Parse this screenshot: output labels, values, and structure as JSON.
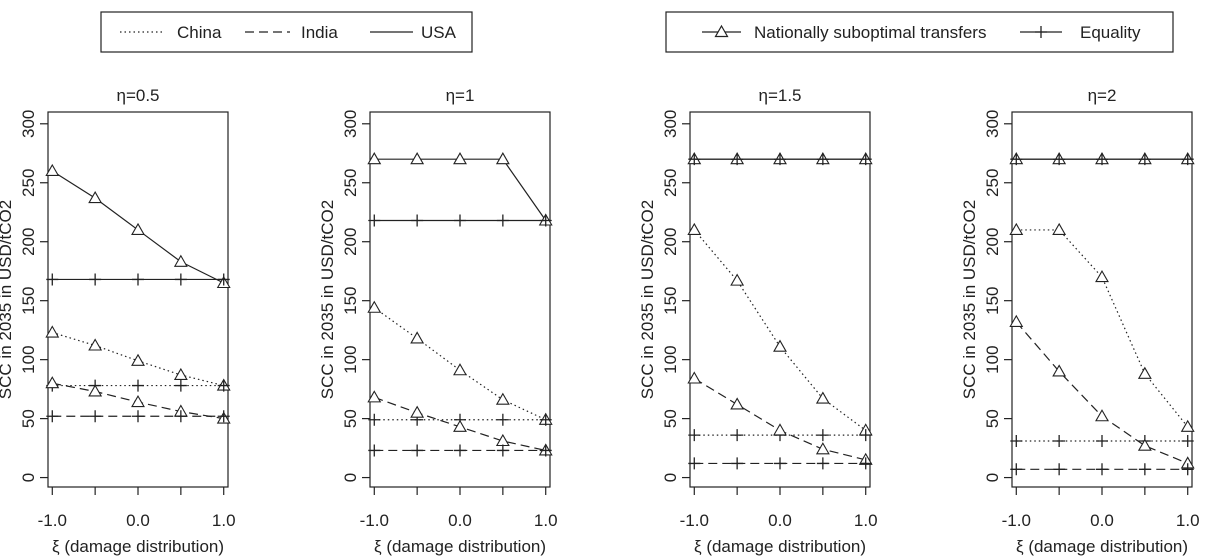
{
  "legends": [
    {
      "entries": [
        {
          "label": "China",
          "style": "dotted"
        },
        {
          "label": "India",
          "style": "dashed"
        },
        {
          "label": "USA",
          "style": "solid"
        }
      ]
    },
    {
      "entries": [
        {
          "label": "Nationally suboptimal transfers",
          "marker": "triangle"
        },
        {
          "label": "Equality",
          "marker": "plus"
        }
      ]
    }
  ],
  "chart_data": [
    {
      "type": "line",
      "title": "η=0.5",
      "xlabel": "ξ (damage distribution)",
      "ylabel": "SCC in 2035 in USD/tCO2",
      "x": [
        -1.0,
        -0.5,
        0.0,
        0.5,
        1.0
      ],
      "xticks": [
        "-1.0",
        "0.0",
        "1.0"
      ],
      "yticks": [
        "0",
        "50",
        "100",
        "150",
        "200",
        "250",
        "300"
      ],
      "xlim": [
        -1.05,
        1.05
      ],
      "ylim": [
        -8,
        310
      ],
      "grid": false,
      "series": [
        {
          "name": "USA",
          "marker": "triangle",
          "values": [
            260,
            237,
            210,
            183,
            165
          ]
        },
        {
          "name": "USA",
          "marker": "plus",
          "values": [
            168,
            168,
            168,
            168,
            168
          ]
        },
        {
          "name": "China",
          "marker": "triangle",
          "values": [
            123,
            112,
            99,
            87,
            78
          ]
        },
        {
          "name": "China",
          "marker": "plus",
          "values": [
            78,
            78,
            78,
            78,
            78
          ]
        },
        {
          "name": "India",
          "marker": "triangle",
          "values": [
            80,
            73,
            64,
            56,
            50
          ]
        },
        {
          "name": "India",
          "marker": "plus",
          "values": [
            52,
            52,
            52,
            52,
            52
          ]
        }
      ]
    },
    {
      "type": "line",
      "title": "η=1",
      "xlabel": "ξ (damage distribution)",
      "ylabel": "SCC in 2035 in USD/tCO2",
      "x": [
        -1.0,
        -0.5,
        0.0,
        0.5,
        1.0
      ],
      "xticks": [
        "-1.0",
        "0.0",
        "1.0"
      ],
      "yticks": [
        "0",
        "50",
        "100",
        "150",
        "200",
        "250",
        "300"
      ],
      "xlim": [
        -1.05,
        1.05
      ],
      "ylim": [
        -8,
        310
      ],
      "grid": false,
      "series": [
        {
          "name": "USA",
          "marker": "triangle",
          "values": [
            270,
            270,
            270,
            270,
            218
          ]
        },
        {
          "name": "USA",
          "marker": "plus",
          "values": [
            218,
            218,
            218,
            218,
            218
          ]
        },
        {
          "name": "China",
          "marker": "triangle",
          "values": [
            144,
            118,
            91,
            66,
            49
          ]
        },
        {
          "name": "China",
          "marker": "plus",
          "values": [
            49,
            49,
            49,
            49,
            49
          ]
        },
        {
          "name": "India",
          "marker": "triangle",
          "values": [
            68,
            55,
            43,
            31,
            23
          ]
        },
        {
          "name": "India",
          "marker": "plus",
          "values": [
            23,
            23,
            23,
            23,
            23
          ]
        }
      ]
    },
    {
      "type": "line",
      "title": "η=1.5",
      "xlabel": "ξ (damage distribution)",
      "ylabel": "SCC in 2035 in USD/tCO2",
      "x": [
        -1.0,
        -0.5,
        0.0,
        0.5,
        1.0
      ],
      "xticks": [
        "-1.0",
        "0.0",
        "1.0"
      ],
      "yticks": [
        "0",
        "50",
        "100",
        "150",
        "200",
        "250",
        "300"
      ],
      "xlim": [
        -1.05,
        1.05
      ],
      "ylim": [
        -8,
        310
      ],
      "grid": false,
      "series": [
        {
          "name": "USA",
          "marker": "triangle",
          "values": [
            270,
            270,
            270,
            270,
            270
          ]
        },
        {
          "name": "USA",
          "marker": "plus",
          "values": [
            270,
            270,
            270,
            270,
            270
          ]
        },
        {
          "name": "China",
          "marker": "triangle",
          "values": [
            210,
            167,
            111,
            67,
            40
          ]
        },
        {
          "name": "China",
          "marker": "plus",
          "values": [
            36,
            36,
            36,
            36,
            36
          ]
        },
        {
          "name": "India",
          "marker": "triangle",
          "values": [
            84,
            62,
            40,
            24,
            15
          ]
        },
        {
          "name": "India",
          "marker": "plus",
          "values": [
            12,
            12,
            12,
            12,
            12
          ]
        }
      ]
    },
    {
      "type": "line",
      "title": "η=2",
      "xlabel": "ξ (damage distribution)",
      "ylabel": "SCC in 2035 in USD/tCO2",
      "x": [
        -1.0,
        -0.5,
        0.0,
        0.5,
        1.0
      ],
      "xticks": [
        "-1.0",
        "0.0",
        "1.0"
      ],
      "yticks": [
        "0",
        "50",
        "100",
        "150",
        "200",
        "250",
        "300"
      ],
      "xlim": [
        -1.05,
        1.05
      ],
      "ylim": [
        -8,
        310
      ],
      "grid": false,
      "series": [
        {
          "name": "USA",
          "marker": "triangle",
          "values": [
            270,
            270,
            270,
            270,
            270
          ]
        },
        {
          "name": "USA",
          "marker": "plus",
          "values": [
            270,
            270,
            270,
            270,
            270
          ]
        },
        {
          "name": "China",
          "marker": "triangle",
          "values": [
            210,
            210,
            170,
            88,
            43
          ]
        },
        {
          "name": "China",
          "marker": "plus",
          "values": [
            31,
            31,
            31,
            31,
            31
          ]
        },
        {
          "name": "India",
          "marker": "triangle",
          "values": [
            132,
            90,
            52,
            27,
            12
          ]
        },
        {
          "name": "India",
          "marker": "plus",
          "values": [
            7,
            7,
            7,
            7,
            7
          ]
        }
      ]
    }
  ]
}
